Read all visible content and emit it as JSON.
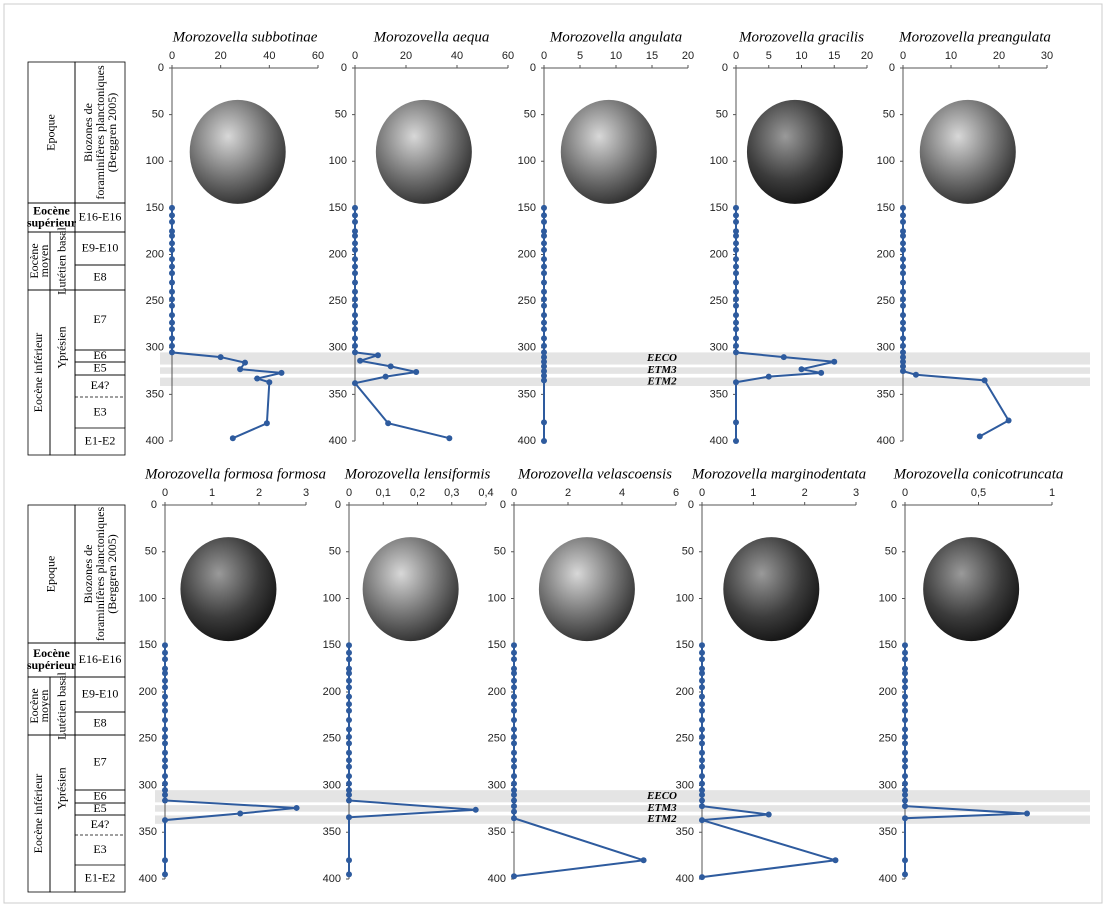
{
  "chart_data": [
    {
      "type": "line",
      "title": "Morozovella subbotinae",
      "color": "#2e5b9e",
      "xlim": [
        0,
        60
      ],
      "xticks": [
        0,
        20,
        40,
        60
      ],
      "ylim": [
        0,
        400
      ],
      "yticks": [
        0,
        50,
        100,
        150,
        200,
        250,
        300,
        350,
        400
      ],
      "y_inverted": true,
      "depths": [
        150,
        158,
        165,
        175,
        180,
        188,
        195,
        205,
        213,
        220,
        230,
        240,
        248,
        255,
        265,
        273,
        280,
        290,
        298,
        305,
        310,
        316,
        323,
        327,
        333,
        337,
        381,
        397
      ],
      "values": [
        0,
        0,
        0,
        0,
        0,
        0,
        0,
        0,
        0,
        0,
        0,
        0,
        0,
        0,
        0,
        0,
        0,
        0,
        0,
        0,
        20,
        30,
        28,
        45,
        35,
        40,
        39,
        25
      ]
    },
    {
      "type": "line",
      "title": "Morozovella aequa",
      "color": "#2e5b9e",
      "xlim": [
        0,
        60
      ],
      "xticks": [
        0,
        20,
        40,
        60
      ],
      "ylim": [
        0,
        400
      ],
      "yticks": [
        0,
        50,
        100,
        150,
        200,
        250,
        300,
        350,
        400
      ],
      "y_inverted": true,
      "depths": [
        150,
        158,
        165,
        175,
        180,
        188,
        195,
        205,
        213,
        220,
        230,
        240,
        248,
        255,
        265,
        273,
        280,
        290,
        298,
        305,
        308,
        314,
        320,
        326,
        331,
        338,
        381,
        397
      ],
      "values": [
        0,
        0,
        0,
        0,
        0,
        0,
        0,
        0,
        0,
        0,
        0,
        0,
        0,
        0,
        0,
        0,
        0,
        0,
        0,
        0,
        9,
        2,
        14,
        24,
        12,
        0,
        13,
        37
      ]
    },
    {
      "type": "line",
      "title": "Morozovella angulata",
      "color": "#2e5b9e",
      "xlim": [
        0,
        20
      ],
      "xticks": [
        0,
        5,
        10,
        15,
        20
      ],
      "ylim": [
        0,
        400
      ],
      "yticks": [
        0,
        50,
        100,
        150,
        200,
        250,
        300,
        350,
        400
      ],
      "y_inverted": true,
      "depths": [
        150,
        158,
        165,
        175,
        180,
        188,
        195,
        205,
        213,
        220,
        230,
        240,
        248,
        255,
        265,
        273,
        280,
        290,
        298,
        305,
        310,
        315,
        320,
        325,
        330,
        335,
        380,
        400
      ],
      "values": [
        0,
        0,
        0,
        0,
        0,
        0,
        0,
        0,
        0,
        0,
        0,
        0,
        0,
        0,
        0,
        0,
        0,
        0,
        0,
        0,
        0,
        0,
        0,
        0,
        0,
        0,
        0,
        0
      ]
    },
    {
      "type": "line",
      "title": "Morozovella gracilis",
      "color": "#2e5b9e",
      "xlim": [
        0,
        20
      ],
      "xticks": [
        0,
        5,
        10,
        15,
        20
      ],
      "ylim": [
        0,
        400
      ],
      "yticks": [
        0,
        50,
        100,
        150,
        200,
        250,
        300,
        350,
        400
      ],
      "y_inverted": true,
      "depths": [
        150,
        158,
        165,
        175,
        180,
        188,
        195,
        205,
        213,
        220,
        230,
        240,
        248,
        255,
        265,
        273,
        280,
        290,
        298,
        305,
        310,
        315,
        323,
        327,
        331,
        337,
        380,
        400
      ],
      "values": [
        0,
        0,
        0,
        0,
        0,
        0,
        0,
        0,
        0,
        0,
        0,
        0,
        0,
        0,
        0,
        0,
        0,
        0,
        0,
        0,
        7.3,
        15,
        10,
        13,
        5,
        0,
        0,
        0
      ]
    },
    {
      "type": "line",
      "title": "Morozovella preangulata",
      "color": "#2e5b9e",
      "xlim": [
        0,
        30
      ],
      "xticks": [
        0,
        10,
        20,
        30
      ],
      "ylim": [
        0,
        400
      ],
      "yticks": [
        0,
        50,
        100,
        150,
        200,
        250,
        300,
        350,
        400
      ],
      "y_inverted": true,
      "depths": [
        150,
        158,
        165,
        175,
        180,
        188,
        195,
        205,
        213,
        220,
        230,
        240,
        248,
        255,
        265,
        273,
        280,
        290,
        298,
        305,
        310,
        315,
        320,
        325,
        329,
        335,
        378,
        395
      ],
      "values": [
        0,
        0,
        0,
        0,
        0,
        0,
        0,
        0,
        0,
        0,
        0,
        0,
        0,
        0,
        0,
        0,
        0,
        0,
        0,
        0,
        0,
        0,
        0,
        0,
        2.7,
        17,
        22,
        16
      ]
    },
    {
      "type": "line",
      "title": "Morozovella formosa formosa",
      "color": "#2e5b9e",
      "xlim": [
        0,
        3
      ],
      "xticks": [
        0,
        1,
        2,
        3
      ],
      "ylim": [
        0,
        400
      ],
      "yticks": [
        0,
        50,
        100,
        150,
        200,
        250,
        300,
        350,
        400
      ],
      "y_inverted": true,
      "depths": [
        150,
        158,
        165,
        175,
        180,
        188,
        195,
        205,
        213,
        220,
        230,
        240,
        248,
        255,
        265,
        273,
        280,
        290,
        298,
        305,
        310,
        316,
        324,
        330,
        337,
        380,
        395
      ],
      "values": [
        0,
        0,
        0,
        0,
        0,
        0,
        0,
        0,
        0,
        0,
        0,
        0,
        0,
        0,
        0,
        0,
        0,
        0,
        0,
        0,
        0,
        0,
        2.8,
        1.6,
        0,
        0,
        0
      ]
    },
    {
      "type": "line",
      "title": "Morozovella lensiformis",
      "color": "#2e5b9e",
      "xlim": [
        0,
        0.4
      ],
      "xticks": [
        0,
        {
          "value": 0.1,
          "label": "0,1"
        },
        {
          "value": 0.2,
          "label": "0,2"
        },
        {
          "value": 0.3,
          "label": "0,3"
        },
        {
          "value": 0.4,
          "label": "0,4"
        }
      ],
      "ylim": [
        0,
        400
      ],
      "yticks": [
        0,
        50,
        100,
        150,
        200,
        250,
        300,
        350,
        400
      ],
      "y_inverted": true,
      "depths": [
        150,
        158,
        165,
        175,
        180,
        188,
        195,
        205,
        213,
        220,
        230,
        240,
        248,
        255,
        265,
        273,
        280,
        290,
        298,
        305,
        310,
        316,
        326,
        334,
        380,
        395
      ],
      "values": [
        0,
        0,
        0,
        0,
        0,
        0,
        0,
        0,
        0,
        0,
        0,
        0,
        0,
        0,
        0,
        0,
        0,
        0,
        0,
        0,
        0,
        0,
        0.37,
        0,
        0,
        0
      ]
    },
    {
      "type": "line",
      "title": "Morozovella velascoensis",
      "color": "#2e5b9e",
      "xlim": [
        0,
        6
      ],
      "xticks": [
        0,
        2,
        4,
        6
      ],
      "ylim": [
        0,
        400
      ],
      "yticks": [
        0,
        50,
        100,
        150,
        200,
        250,
        300,
        350,
        400
      ],
      "y_inverted": true,
      "depths": [
        150,
        158,
        165,
        175,
        180,
        188,
        195,
        205,
        213,
        220,
        230,
        240,
        248,
        255,
        265,
        273,
        280,
        290,
        298,
        305,
        310,
        316,
        322,
        328,
        335,
        380,
        397
      ],
      "values": [
        0,
        0,
        0,
        0,
        0,
        0,
        0,
        0,
        0,
        0,
        0,
        0,
        0,
        0,
        0,
        0,
        0,
        0,
        0,
        0,
        0,
        0,
        0,
        0,
        0,
        4.8,
        0
      ]
    },
    {
      "type": "line",
      "title": "Morozovella marginodentata",
      "color": "#2e5b9e",
      "xlim": [
        0,
        3
      ],
      "xticks": [
        0,
        1,
        2,
        3
      ],
      "ylim": [
        0,
        400
      ],
      "yticks": [
        0,
        50,
        100,
        150,
        200,
        250,
        300,
        350,
        400
      ],
      "y_inverted": true,
      "depths": [
        150,
        158,
        165,
        175,
        180,
        188,
        195,
        205,
        213,
        220,
        230,
        240,
        248,
        255,
        265,
        273,
        280,
        290,
        298,
        305,
        310,
        316,
        322,
        331,
        337,
        380,
        398
      ],
      "values": [
        0,
        0,
        0,
        0,
        0,
        0,
        0,
        0,
        0,
        0,
        0,
        0,
        0,
        0,
        0,
        0,
        0,
        0,
        0,
        0,
        0,
        0,
        0,
        1.3,
        0,
        2.6,
        0
      ]
    },
    {
      "type": "line",
      "title": "Morozovella conicotruncata",
      "color": "#2e5b9e",
      "xlim": [
        0,
        1
      ],
      "xticks": [
        0,
        {
          "value": 0.5,
          "label": "0,5"
        },
        1
      ],
      "ylim": [
        0,
        400
      ],
      "yticks": [
        0,
        50,
        100,
        150,
        200,
        250,
        300,
        350,
        400
      ],
      "y_inverted": true,
      "depths": [
        150,
        158,
        165,
        175,
        180,
        188,
        195,
        205,
        213,
        220,
        230,
        240,
        248,
        255,
        265,
        273,
        280,
        290,
        298,
        305,
        310,
        316,
        322,
        330,
        335,
        380,
        395
      ],
      "values": [
        0,
        0,
        0,
        0,
        0,
        0,
        0,
        0,
        0,
        0,
        0,
        0,
        0,
        0,
        0,
        0,
        0,
        0,
        0,
        0,
        0,
        0,
        0,
        0.83,
        0,
        0,
        0
      ]
    }
  ],
  "events": [
    {
      "label": "EECO",
      "top": 305,
      "bottom": 318
    },
    {
      "label": "ETM3",
      "top": 321,
      "bottom": 328
    },
    {
      "label": "ETM2",
      "top": 332,
      "bottom": 341
    }
  ],
  "stratigraphy": {
    "epoch_header": "Epoque",
    "biozone_header": [
      "Biozones de",
      "foraminifères planctoniques",
      "(Berggren 2005)"
    ],
    "superior": [
      "Eocène",
      "supérieur"
    ],
    "middle": [
      "Eocène",
      "moyen"
    ],
    "lutetian": "Lutétien basal",
    "inferior": "Eocène inférieur",
    "ypresian": "Yprésien",
    "zones": [
      "E16-E16",
      "E9-E10",
      "E8",
      "E7",
      "E6",
      "E5",
      "E4?",
      "E3",
      "E1-E2"
    ]
  }
}
